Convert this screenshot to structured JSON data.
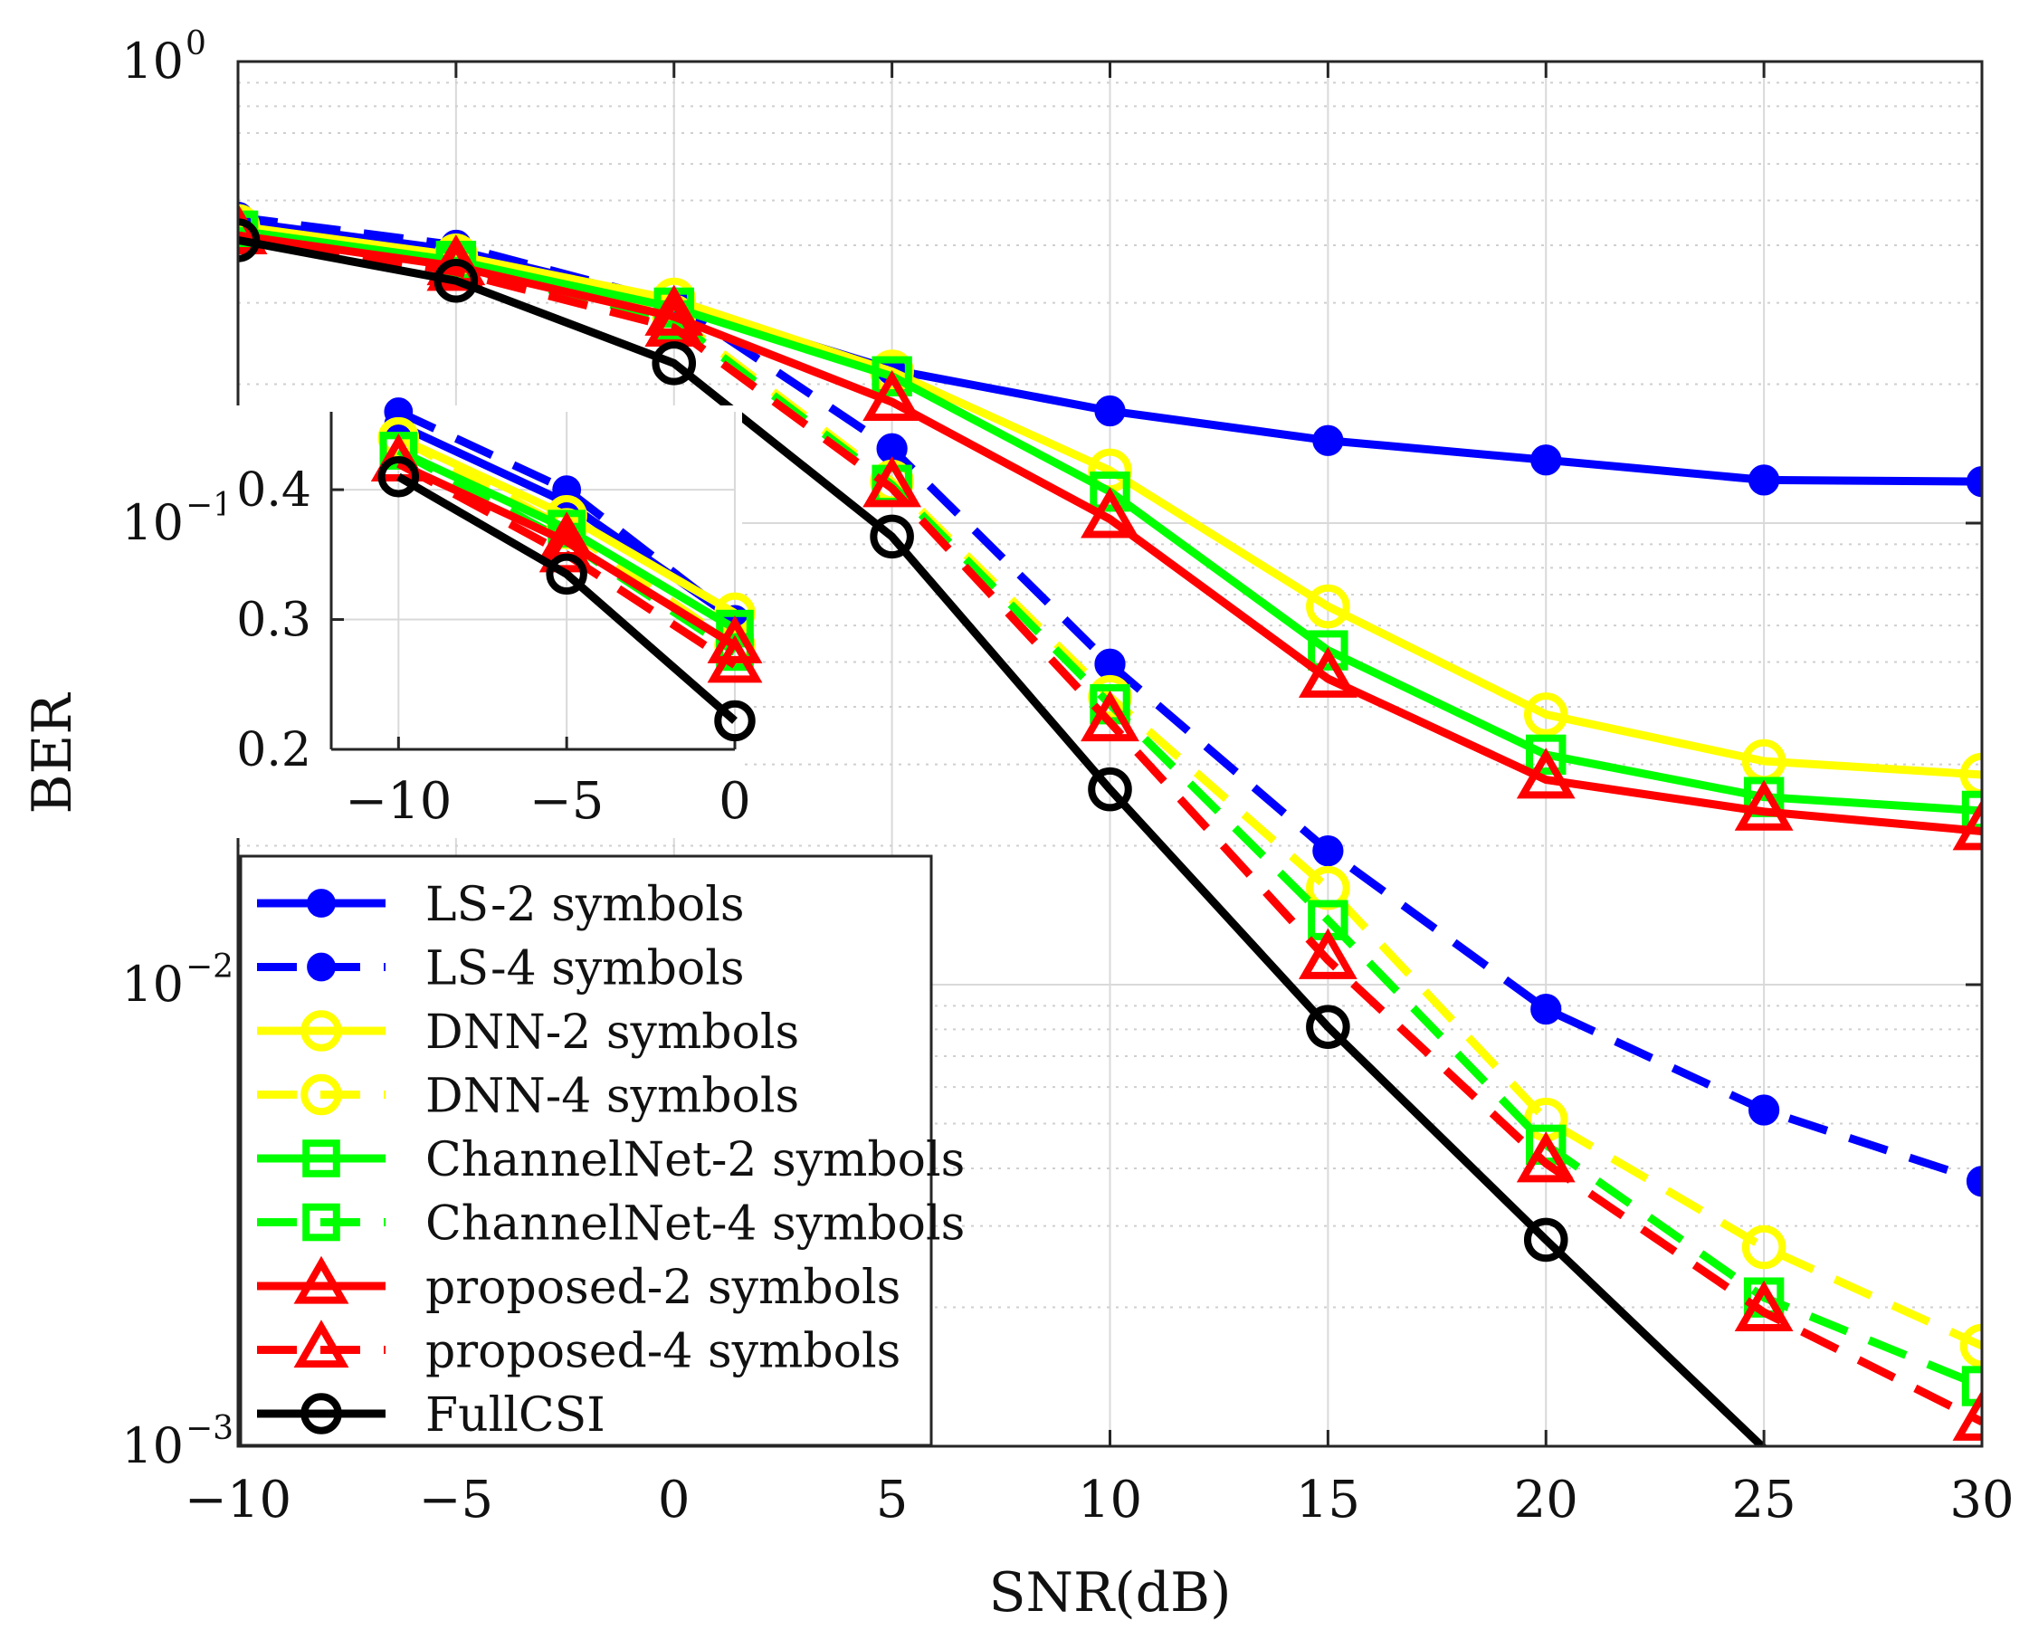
{
  "chart_data": {
    "type": "line",
    "xlabel": "SNR(dB)",
    "ylabel": "BER",
    "xlim": [
      -10,
      30
    ],
    "ylim": [
      0.001,
      1
    ],
    "yscale": "log",
    "grid": true,
    "minor_grid": true,
    "x_ticks": [
      "−10",
      "−5",
      "0",
      "5",
      "10",
      "15",
      "20",
      "25",
      "30"
    ],
    "y_tick_bases": [
      "10",
      "10",
      "10",
      "10"
    ],
    "y_tick_exponents": [
      "0",
      "−1",
      "−2",
      "−3"
    ],
    "legend_position": "bottom-left",
    "x": [
      -10,
      -5,
      0,
      5,
      10,
      15,
      20,
      25,
      30
    ],
    "series": [
      {
        "name": "LS-2 symbols",
        "color": "#0000ff",
        "dash": false,
        "marker": "dot",
        "values": [
          0.45,
          0.39,
          0.3,
          0.215,
          0.175,
          0.151,
          0.137,
          0.124,
          0.123
        ]
      },
      {
        "name": "LS-4 symbols",
        "color": "#0000ff",
        "dash": true,
        "marker": "dot",
        "values": [
          0.46,
          0.4,
          0.3,
          0.145,
          0.0495,
          0.0195,
          0.00885,
          0.00535,
          0.00375
        ]
      },
      {
        "name": "DNN-2 symbols",
        "color": "#ffff00",
        "dash": false,
        "marker": "circle",
        "values": [
          0.44,
          0.38,
          0.305,
          0.213,
          0.13,
          0.066,
          0.0385,
          0.0305,
          0.0285
        ]
      },
      {
        "name": "DNN-4 symbols",
        "color": "#ffff00",
        "dash": true,
        "marker": "circle",
        "values": [
          0.44,
          0.37,
          0.28,
          0.123,
          0.042,
          0.0162,
          0.0051,
          0.0027,
          0.00165
        ]
      },
      {
        "name": "ChannelNet-2 symbols",
        "color": "#00ff00",
        "dash": false,
        "marker": "square",
        "values": [
          0.43,
          0.37,
          0.293,
          0.208,
          0.117,
          0.053,
          0.0315,
          0.0255,
          0.0238
        ]
      },
      {
        "name": "ChannelNet-4 symbols",
        "color": "#00ff00",
        "dash": true,
        "marker": "square",
        "values": [
          0.43,
          0.36,
          0.275,
          0.121,
          0.0405,
          0.0138,
          0.0045,
          0.0021,
          0.00135
        ]
      },
      {
        "name": "proposed-2 symbols",
        "color": "#ff0000",
        "dash": false,
        "marker": "triangle",
        "values": [
          0.42,
          0.36,
          0.28,
          0.183,
          0.102,
          0.046,
          0.0278,
          0.0237,
          0.0215
        ]
      },
      {
        "name": "proposed-4 symbols",
        "color": "#ff0000",
        "dash": true,
        "marker": "triangle",
        "values": [
          0.42,
          0.35,
          0.265,
          0.119,
          0.037,
          0.0113,
          0.0041,
          0.00195,
          0.00113
        ]
      },
      {
        "name": "FullCSI",
        "color": "#000000",
        "dash": false,
        "marker": "circle",
        "values": [
          0.41,
          0.335,
          0.222,
          0.0935,
          0.0265,
          0.0081,
          0.0028,
          0.00099,
          null
        ]
      }
    ],
    "inset": {
      "x": [
        -10,
        -5,
        0
      ],
      "xlim": [
        -12,
        0
      ],
      "ylim": [
        0.2,
        0.46
      ],
      "yscale": "linear",
      "grid": true,
      "x_ticks": [
        "−10",
        "−5",
        "0"
      ],
      "y_ticks": [
        "0.2",
        "0.3",
        "0.4"
      ]
    }
  }
}
